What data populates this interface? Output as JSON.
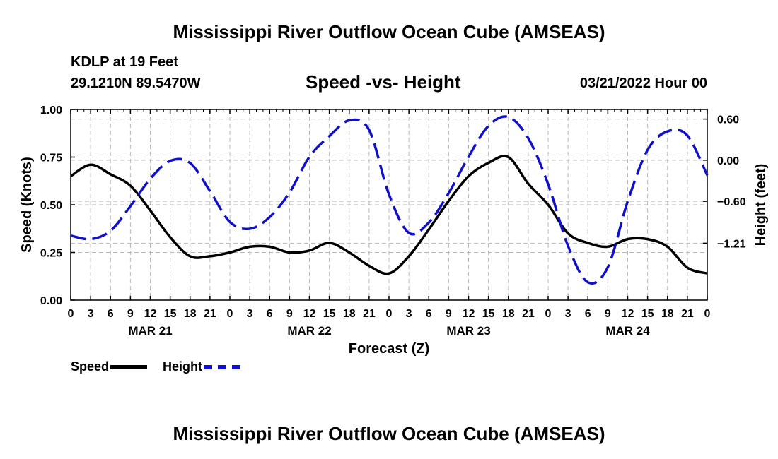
{
  "header": {
    "title": "Mississippi River Outflow Ocean Cube (AMSEAS)",
    "station": "KDLP at 19 Feet",
    "coords": "29.1210N  89.5470W",
    "subtitle": "Speed -vs- Height",
    "run": "03/21/2022 Hour 00"
  },
  "footer": {
    "title": "Mississippi River Outflow Ocean Cube (AMSEAS)"
  },
  "colors": {
    "speed": "#000000",
    "height": "#1010c8",
    "grid": "#b8b8b8"
  },
  "chart_data": {
    "type": "line",
    "title": "Speed -vs- Height",
    "xlabel": "Forecast (Z)",
    "ylabel": "Speed (Knots)",
    "y2label": "Height (feet)",
    "x": [
      0,
      3,
      6,
      9,
      12,
      15,
      18,
      21,
      24,
      27,
      30,
      33,
      36,
      39,
      42,
      45,
      48,
      51,
      54,
      57,
      60,
      63,
      66,
      69,
      72,
      75,
      78,
      81,
      84,
      87,
      90,
      93,
      96
    ],
    "xlim": [
      0,
      96
    ],
    "xticks": [
      0,
      3,
      6,
      9,
      12,
      15,
      18,
      21,
      24,
      27,
      30,
      33,
      36,
      39,
      42,
      45,
      48,
      51,
      54,
      57,
      60,
      63,
      66,
      69,
      72,
      75,
      78,
      81,
      84,
      87,
      90,
      93,
      96
    ],
    "xtick_labels": [
      "0",
      "3",
      "6",
      "9",
      "12",
      "15",
      "18",
      "21",
      "0",
      "3",
      "6",
      "9",
      "12",
      "15",
      "18",
      "21",
      "0",
      "3",
      "6",
      "9",
      "12",
      "15",
      "18",
      "21",
      "0",
      "3",
      "6",
      "9",
      "12",
      "15",
      "18",
      "21",
      "0"
    ],
    "date_labels": [
      {
        "x": 12,
        "label": "MAR 21"
      },
      {
        "x": 36,
        "label": "MAR 22"
      },
      {
        "x": 60,
        "label": "MAR 23"
      },
      {
        "x": 84,
        "label": "MAR 24"
      }
    ],
    "ylim": [
      0,
      1.0
    ],
    "yticks": [
      0,
      0.25,
      0.5,
      0.75,
      1.0
    ],
    "ytick_labels": [
      "0.00",
      "0.25",
      "0.50",
      "0.75",
      "1.00"
    ],
    "y2lim": [
      -2.04,
      0.74
    ],
    "y2ticks": [
      0.6,
      0.0,
      -0.6,
      -1.21
    ],
    "y2tick_labels": [
      "0.60",
      "0.00",
      "−0.60",
      "−1.21"
    ],
    "grid": true,
    "legend": "bottom-left",
    "legend_labels": [
      "Speed",
      "Height"
    ],
    "series": [
      {
        "name": "Speed",
        "axis": "left",
        "style": "solid",
        "values": [
          0.65,
          0.71,
          0.66,
          0.6,
          0.47,
          0.33,
          0.23,
          0.23,
          0.25,
          0.28,
          0.28,
          0.25,
          0.26,
          0.3,
          0.25,
          0.18,
          0.14,
          0.23,
          0.37,
          0.52,
          0.65,
          0.72,
          0.75,
          0.61,
          0.5,
          0.35,
          0.3,
          0.28,
          0.32,
          0.32,
          0.28,
          0.17,
          0.14
        ]
      },
      {
        "name": "Height",
        "axis": "right",
        "style": "dashed",
        "values": [
          -1.1,
          -1.15,
          -1.03,
          -0.67,
          -0.27,
          -0.01,
          -0.04,
          -0.45,
          -0.9,
          -1.0,
          -0.83,
          -0.47,
          0.05,
          0.35,
          0.58,
          0.44,
          -0.5,
          -1.06,
          -0.91,
          -0.48,
          0.05,
          0.5,
          0.63,
          0.32,
          -0.35,
          -1.25,
          -1.78,
          -1.56,
          -0.6,
          0.15,
          0.42,
          0.36,
          -0.22
        ]
      }
    ]
  }
}
